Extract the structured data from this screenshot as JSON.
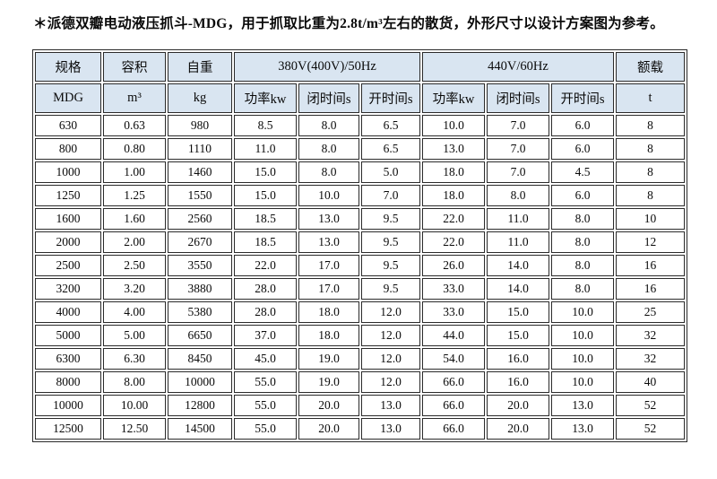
{
  "title": "＊派德双瓣电动液压抓斗-MDG，用于抓取比重为2.8t/m³左右的散货，外形尺寸以设计方案图为参考。",
  "colors": {
    "header_bg": "#d9e5f1",
    "border": "#2b2b2b",
    "page_bg": "#ffffff",
    "text": "#0a0a0a"
  },
  "table": {
    "header_row1": {
      "spec": "规格",
      "volume": "容积",
      "self_weight": "自重",
      "hz50": "380V(400V)/50Hz",
      "hz60": "440V/60Hz",
      "rated_load": "额载"
    },
    "header_row2": {
      "c0": "MDG",
      "c1": "m³",
      "c2": "kg",
      "c3": "功率kw",
      "c4": "闭时间s",
      "c5": "开时间s",
      "c6": "功率kw",
      "c7": "闭时间s",
      "c8": "开时间s",
      "c9": "t"
    },
    "rows": [
      [
        "630",
        "0.63",
        "980",
        "8.5",
        "8.0",
        "6.5",
        "10.0",
        "7.0",
        "6.0",
        "8"
      ],
      [
        "800",
        "0.80",
        "1110",
        "11.0",
        "8.0",
        "6.5",
        "13.0",
        "7.0",
        "6.0",
        "8"
      ],
      [
        "1000",
        "1.00",
        "1460",
        "15.0",
        "8.0",
        "5.0",
        "18.0",
        "7.0",
        "4.5",
        "8"
      ],
      [
        "1250",
        "1.25",
        "1550",
        "15.0",
        "10.0",
        "7.0",
        "18.0",
        "8.0",
        "6.0",
        "8"
      ],
      [
        "1600",
        "1.60",
        "2560",
        "18.5",
        "13.0",
        "9.5",
        "22.0",
        "11.0",
        "8.0",
        "10"
      ],
      [
        "2000",
        "2.00",
        "2670",
        "18.5",
        "13.0",
        "9.5",
        "22.0",
        "11.0",
        "8.0",
        "12"
      ],
      [
        "2500",
        "2.50",
        "3550",
        "22.0",
        "17.0",
        "9.5",
        "26.0",
        "14.0",
        "8.0",
        "16"
      ],
      [
        "3200",
        "3.20",
        "3880",
        "28.0",
        "17.0",
        "9.5",
        "33.0",
        "14.0",
        "8.0",
        "16"
      ],
      [
        "4000",
        "4.00",
        "5380",
        "28.0",
        "18.0",
        "12.0",
        "33.0",
        "15.0",
        "10.0",
        "25"
      ],
      [
        "5000",
        "5.00",
        "6650",
        "37.0",
        "18.0",
        "12.0",
        "44.0",
        "15.0",
        "10.0",
        "32"
      ],
      [
        "6300",
        "6.30",
        "8450",
        "45.0",
        "19.0",
        "12.0",
        "54.0",
        "16.0",
        "10.0",
        "32"
      ],
      [
        "8000",
        "8.00",
        "10000",
        "55.0",
        "19.0",
        "12.0",
        "66.0",
        "16.0",
        "10.0",
        "40"
      ],
      [
        "10000",
        "10.00",
        "12800",
        "55.0",
        "20.0",
        "13.0",
        "66.0",
        "20.0",
        "13.0",
        "52"
      ],
      [
        "12500",
        "12.50",
        "14500",
        "55.0",
        "20.0",
        "13.0",
        "66.0",
        "20.0",
        "13.0",
        "52"
      ]
    ]
  }
}
